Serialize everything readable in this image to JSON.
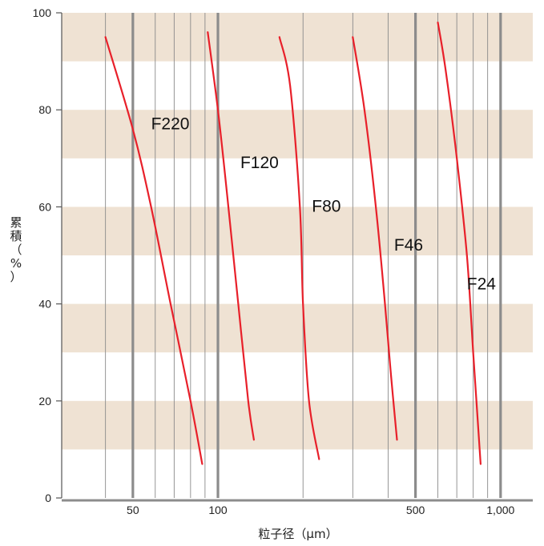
{
  "chart_data": {
    "type": "line",
    "xlabel": "粒子径（μm）",
    "ylabel": "累積（%）",
    "x_scale": "log",
    "xlim": [
      28,
      1300
    ],
    "ylim": [
      0,
      100
    ],
    "x_tick_labels": [
      {
        "value": 50,
        "label": "50"
      },
      {
        "value": 100,
        "label": "100"
      },
      {
        "value": 500,
        "label": "500"
      },
      {
        "value": 1000,
        "label": "1,000"
      }
    ],
    "y_ticks": [
      0,
      20,
      40,
      60,
      80,
      100
    ],
    "x_gridlines_major": [
      50,
      100,
      500,
      1000
    ],
    "x_gridlines_minor": [
      40,
      60,
      70,
      80,
      90,
      200,
      300,
      400,
      600,
      700,
      800,
      900
    ],
    "band_color": "#efe2d3",
    "line_color": "#e8202a",
    "series": [
      {
        "name": "F220",
        "points": [
          [
            40,
            95
          ],
          [
            50,
            76
          ],
          [
            58,
            60
          ],
          [
            68,
            40
          ],
          [
            80,
            20
          ],
          [
            88,
            7
          ]
        ]
      },
      {
        "name": "F120",
        "points": [
          [
            92,
            96
          ],
          [
            100,
            80
          ],
          [
            108,
            62
          ],
          [
            118,
            40
          ],
          [
            128,
            20
          ],
          [
            134,
            12
          ]
        ]
      },
      {
        "name": "F80",
        "points": [
          [
            165,
            95
          ],
          [
            180,
            85
          ],
          [
            195,
            60
          ],
          [
            200,
            40
          ],
          [
            210,
            20
          ],
          [
            228,
            8
          ]
        ]
      },
      {
        "name": "F46",
        "points": [
          [
            300,
            95
          ],
          [
            330,
            80
          ],
          [
            362,
            60
          ],
          [
            390,
            40
          ],
          [
            410,
            25
          ],
          [
            430,
            12
          ]
        ]
      },
      {
        "name": "F24",
        "points": [
          [
            600,
            98
          ],
          [
            640,
            88
          ],
          [
            700,
            70
          ],
          [
            760,
            50
          ],
          [
            800,
            30
          ],
          [
            850,
            7
          ]
        ]
      }
    ],
    "series_label_positions": [
      {
        "name": "F220",
        "x": 58,
        "y": 76
      },
      {
        "name": "F120",
        "x": 120,
        "y": 68
      },
      {
        "name": "F80",
        "x": 215,
        "y": 59
      },
      {
        "name": "F46",
        "x": 420,
        "y": 51
      },
      {
        "name": "F24",
        "x": 760,
        "y": 43
      }
    ]
  }
}
